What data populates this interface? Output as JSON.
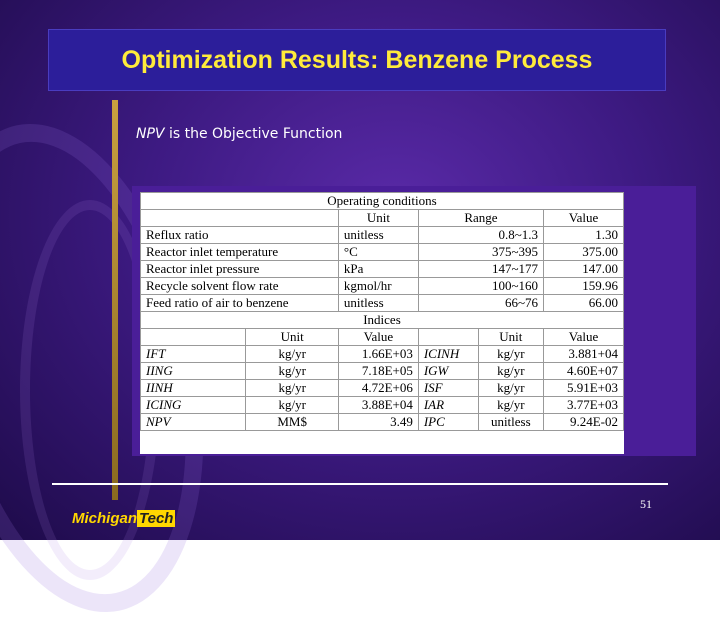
{
  "slide": {
    "title": "Optimization Results: Benzene Process",
    "subtitle_em": "NPV",
    "subtitle_rest": " is the Objective Function",
    "page_number": "51",
    "logo_michigan": "Michigan",
    "logo_tech": "Tech"
  },
  "table": {
    "operating_header": "Operating conditions",
    "op_columns": [
      "",
      "Unit",
      "Range",
      "Value"
    ],
    "op_rows": [
      [
        "Reflux ratio",
        "unitless",
        "0.8~1.3",
        "1.30"
      ],
      [
        "Reactor inlet temperature",
        "°C",
        "375~395",
        "375.00"
      ],
      [
        "Reactor inlet pressure",
        "kPa",
        "147~177",
        "147.00"
      ],
      [
        "Recycle solvent flow rate",
        "kgmol/hr",
        "100~160",
        "159.96"
      ],
      [
        "Feed ratio of air to benzene",
        "unitless",
        "66~76",
        "66.00"
      ]
    ],
    "indices_header": "Indices",
    "idx_columns": [
      "",
      "Unit",
      "Value",
      "",
      "Unit",
      "Value"
    ],
    "idx_rows": [
      [
        "IFT",
        "kg/yr",
        "1.66E+03",
        "ICINH",
        "kg/yr",
        "3.881+04"
      ],
      [
        "IING",
        "kg/yr",
        "7.18E+05",
        "IGW",
        "kg/yr",
        "4.60E+07"
      ],
      [
        "IINH",
        "kg/yr",
        "4.72E+06",
        "ISF",
        "kg/yr",
        "5.91E+03"
      ],
      [
        "ICING",
        "kg/yr",
        "3.88E+04",
        "IAR",
        "kg/yr",
        "3.77E+03"
      ],
      [
        "NPV",
        "MM$",
        "3.49",
        "IPC",
        "unitless",
        "9.24E-02"
      ]
    ]
  }
}
